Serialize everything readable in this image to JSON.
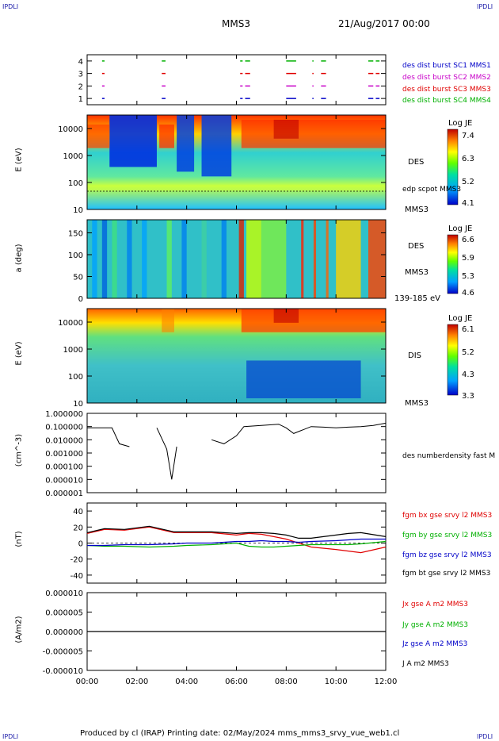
{
  "corner_labels": {
    "tl": "IPDLI",
    "tr": "IPDLI",
    "bl": "IPDLI",
    "br": "IPDLI"
  },
  "header": {
    "spacecraft": "MMS3",
    "datetime": "21/Aug/2017 00:00"
  },
  "footer": "Produced by cl (IRAP)   Printing date: 02/May/2024   mms_mms3_srvy_vue_web1.cl",
  "x_axis": {
    "ticks": [
      "00:00",
      "02:00",
      "04:00",
      "06:00",
      "08:00",
      "10:00",
      "12:00"
    ]
  },
  "colors": {
    "red": "#e00000",
    "green": "#00b000",
    "blue": "#0000c8",
    "magenta": "#c800c8",
    "black": "#000000"
  },
  "chart_data": [
    {
      "type": "scatter",
      "panel": "burst availability",
      "ylim": [
        0.5,
        4.5
      ],
      "yticks": [
        "1",
        "2",
        "3",
        "4"
      ],
      "legend": [
        {
          "name": "des dist burst SC1 MMS1",
          "color": "#0000c8"
        },
        {
          "name": "des dist burst SC2 MMS2",
          "color": "#c800c8"
        },
        {
          "name": "des dist burst SC3 MMS3",
          "color": "#e00000"
        },
        {
          "name": "des dist burst SC4 MMS4",
          "color": "#00b000"
        }
      ],
      "intervals_hours": [
        [
          0.6,
          0.7
        ],
        [
          3.0,
          3.15
        ],
        [
          6.15,
          6.25
        ],
        [
          6.35,
          6.55
        ],
        [
          8.0,
          8.4
        ],
        [
          9.05,
          9.1
        ],
        [
          9.4,
          9.6
        ],
        [
          11.3,
          11.5
        ],
        [
          11.6,
          11.75
        ]
      ]
    },
    {
      "type": "heatmap",
      "panel": "DES energy spectrogram",
      "ylabel": "E (eV)",
      "ytick_labels": [
        "10",
        "100",
        "1000",
        "10000"
      ],
      "yscale": "log",
      "label": "DES",
      "sublabel": "MMS3",
      "overlay": "edp scpot MMS3",
      "colorbar": {
        "title": "Log JE",
        "ticks": [
          "7.4",
          "6.3",
          "5.2",
          "4.1"
        ]
      }
    },
    {
      "type": "heatmap",
      "panel": "DES pitch angle",
      "ylabel": "a (deg)",
      "ytick_labels": [
        "0",
        "50",
        "100",
        "150"
      ],
      "ylim": [
        0,
        180
      ],
      "label": "DES",
      "sublabel": "MMS3",
      "energy_range": "139-185 eV",
      "colorbar": {
        "title": "Log JE",
        "ticks": [
          "6.6",
          "5.9",
          "5.3",
          "4.6"
        ]
      }
    },
    {
      "type": "heatmap",
      "panel": "DIS energy spectrogram",
      "ylabel": "E (eV)",
      "ytick_labels": [
        "10",
        "100",
        "1000",
        "10000"
      ],
      "yscale": "log",
      "label": "DIS",
      "sublabel": "MMS3",
      "colorbar": {
        "title": "Log JE",
        "ticks": [
          "6.1",
          "5.2",
          "4.3",
          "3.3"
        ]
      }
    },
    {
      "type": "line",
      "panel": "density",
      "ylabel": "(cm^-3)",
      "yscale": "log",
      "ytick_labels": [
        "1.000000",
        "0.100000",
        "0.010000",
        "0.001000",
        "0.000100",
        "0.000010",
        "0.000001"
      ],
      "series": [
        {
          "name": "des numberdensity fast M",
          "color": "#000000"
        }
      ],
      "x": [
        0,
        1,
        1.3,
        1.7,
        2.0,
        2.8,
        3.2,
        3.4,
        3.6,
        4.0,
        4.5,
        5.0,
        5.5,
        6.0,
        6.3,
        7.0,
        7.7,
        8.0,
        8.3,
        9.0,
        9.5,
        10.0,
        10.5,
        11.0,
        11.5,
        12.0
      ],
      "values": [
        0.08,
        0.08,
        0.005,
        0.003,
        null,
        0.08,
        0.002,
        1e-05,
        0.003,
        null,
        null,
        0.01,
        0.005,
        0.02,
        0.1,
        0.12,
        0.15,
        0.08,
        0.03,
        0.1,
        0.09,
        0.08,
        0.09,
        0.1,
        0.12,
        0.18
      ]
    },
    {
      "type": "line",
      "panel": "magnetic field",
      "ylabel": "(nT)",
      "ylim": [
        -50,
        50
      ],
      "ytick_labels": [
        "40",
        "20",
        "0",
        "-20",
        "-40"
      ],
      "series": [
        {
          "name": "fgm bx gse srvy l2 MMS3",
          "color": "#e00000",
          "values": [
            12,
            17,
            16,
            20,
            13,
            13,
            13,
            10,
            12,
            11,
            8,
            5,
            0,
            -5,
            -8,
            -10,
            -12,
            -5
          ]
        },
        {
          "name": "fgm by gse srvy l2 MMS3",
          "color": "#00b000",
          "values": [
            -3,
            -4,
            -4,
            -5,
            -4,
            -3,
            -2,
            0,
            -4,
            -5,
            -5,
            -4,
            -3,
            -2,
            -2,
            -2,
            -1,
            2
          ]
        },
        {
          "name": "fgm bz gse srvy l2 MMS3",
          "color": "#0000c8",
          "values": [
            -3,
            -3,
            -2,
            -2,
            -1,
            0,
            0,
            2,
            2,
            3,
            2,
            2,
            1,
            2,
            3,
            4,
            5,
            5
          ]
        },
        {
          "name": "fgm bt gse srvy l2 MMS3",
          "color": "#000000",
          "values": [
            13,
            18,
            17,
            21,
            14,
            14,
            14,
            12,
            13,
            13,
            12,
            10,
            6,
            6,
            10,
            12,
            13,
            8
          ]
        }
      ],
      "x": [
        0,
        0.7,
        1.5,
        2.5,
        3.5,
        4.0,
        5.0,
        6.0,
        6.5,
        7.0,
        7.5,
        8.0,
        8.5,
        9.0,
        10.0,
        10.5,
        11.0,
        12.0
      ]
    },
    {
      "type": "line",
      "panel": "current density",
      "ylabel": "(A/m2)",
      "ylim": [
        -0.0001,
        0.0001
      ],
      "ytick_labels": [
        "0.000010",
        "0.000005",
        "0.000000",
        "-0.000005",
        "-0.000010"
      ],
      "series": [
        {
          "name": "Jx gse A m2 MMS3",
          "color": "#e00000"
        },
        {
          "name": "Jy gse A m2 MMS3",
          "color": "#00b000"
        },
        {
          "name": "Jz gse A m2 MMS3",
          "color": "#0000c8"
        },
        {
          "name": "J A m2 MMS3",
          "color": "#000000"
        }
      ],
      "x": [
        0,
        12
      ],
      "values": [
        0,
        0
      ]
    }
  ]
}
